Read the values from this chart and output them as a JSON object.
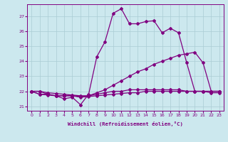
{
  "xlabel": "Windchill (Refroidissement éolien,°C)",
  "bg_color": "#cce8ee",
  "line_color": "#800080",
  "grid_color": "#aaccd4",
  "xlim": [
    -0.5,
    23.5
  ],
  "ylim": [
    20.7,
    27.8
  ],
  "yticks": [
    21,
    22,
    23,
    24,
    25,
    26,
    27
  ],
  "xticks": [
    0,
    1,
    2,
    3,
    4,
    5,
    6,
    7,
    8,
    9,
    10,
    11,
    12,
    13,
    14,
    15,
    16,
    17,
    18,
    19,
    20,
    21,
    22,
    23
  ],
  "series1_x": [
    0,
    1,
    2,
    3,
    4,
    5,
    6,
    7,
    8,
    9,
    10,
    11,
    12,
    13,
    14,
    15,
    16,
    17,
    18,
    19,
    20,
    21,
    22,
    23
  ],
  "series1_y": [
    22.0,
    22.0,
    21.8,
    21.7,
    21.5,
    21.6,
    21.1,
    21.8,
    24.3,
    25.3,
    27.2,
    27.5,
    26.5,
    26.5,
    26.65,
    26.7,
    25.9,
    26.2,
    25.9,
    23.9,
    22.0,
    22.0,
    21.9,
    21.9
  ],
  "series2_x": [
    0,
    1,
    2,
    3,
    4,
    5,
    6,
    7,
    8,
    9,
    10,
    11,
    12,
    13,
    14,
    15,
    16,
    17,
    18,
    19,
    20,
    21,
    22,
    23
  ],
  "series2_y": [
    22.0,
    22.0,
    21.9,
    21.85,
    21.8,
    21.75,
    21.7,
    21.7,
    21.9,
    22.1,
    22.4,
    22.7,
    23.0,
    23.3,
    23.5,
    23.8,
    24.0,
    24.2,
    24.4,
    24.5,
    24.6,
    23.9,
    22.0,
    22.0
  ],
  "series3_x": [
    0,
    1,
    2,
    3,
    4,
    5,
    6,
    7,
    8,
    9,
    10,
    11,
    12,
    13,
    14,
    15,
    16,
    17,
    18,
    19,
    20,
    21,
    22,
    23
  ],
  "series3_y": [
    22.0,
    21.8,
    21.8,
    21.7,
    21.7,
    21.7,
    21.6,
    21.65,
    21.7,
    21.75,
    21.8,
    21.85,
    21.9,
    21.9,
    22.0,
    22.0,
    22.0,
    22.0,
    22.0,
    22.0,
    22.0,
    22.0,
    22.0,
    22.0
  ],
  "series4_x": [
    0,
    1,
    2,
    3,
    4,
    5,
    6,
    7,
    8,
    9,
    10,
    11,
    12,
    13,
    14,
    15,
    16,
    17,
    18,
    19,
    20,
    21,
    22,
    23
  ],
  "series4_y": [
    22.0,
    21.8,
    21.75,
    21.7,
    21.7,
    21.7,
    21.65,
    21.7,
    21.8,
    21.9,
    22.0,
    22.0,
    22.1,
    22.1,
    22.1,
    22.1,
    22.1,
    22.1,
    22.1,
    22.0,
    22.0,
    22.0,
    22.0,
    22.0
  ]
}
